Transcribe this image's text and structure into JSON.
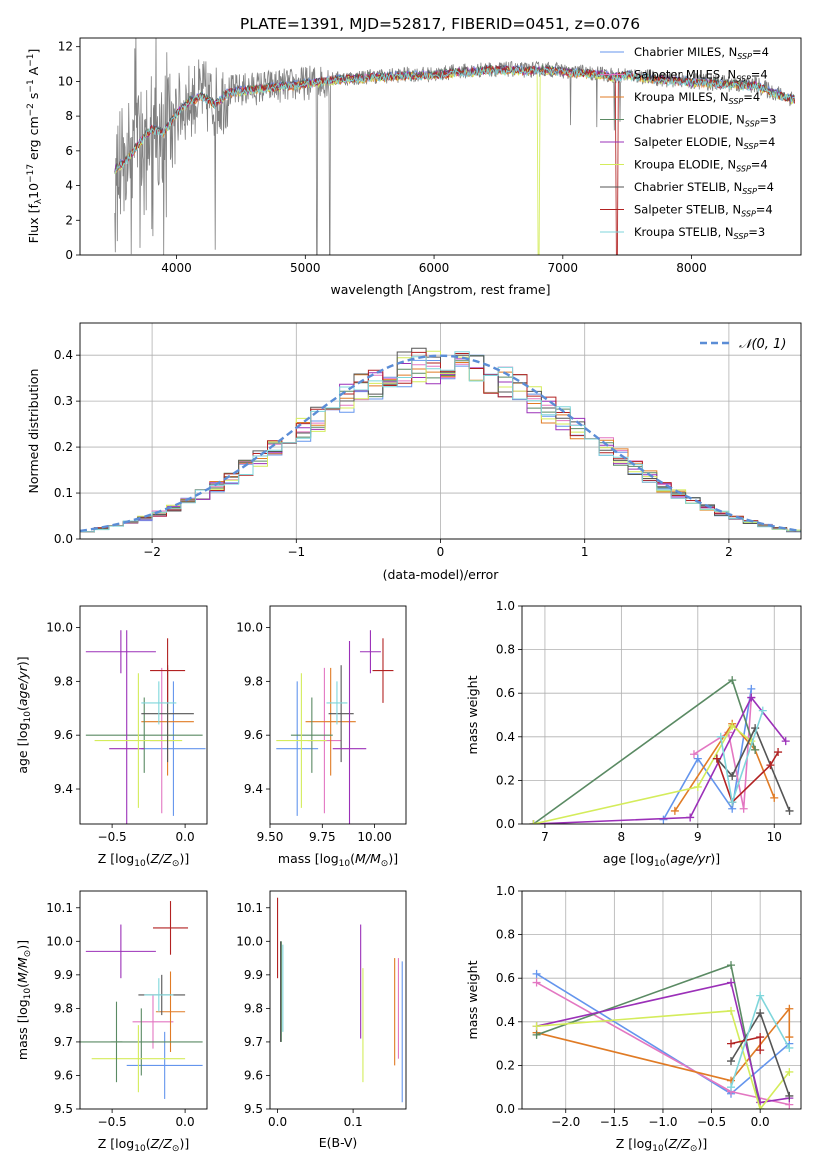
{
  "figure_title": "PLATE=1391, MJD=52817, FIBERID=0451, z=0.076",
  "series_styles": [
    {
      "name": "Chabrier MILES, N$_{SSP}$=4",
      "display": "Chabrier MILES, NSSP=4",
      "base": "Chabrier MILES, N",
      "sub": "SSP",
      "tail": "=4",
      "color": "#6495ED"
    },
    {
      "name": "Salpeter MILES, N$_{SSP}$=4",
      "display": "Salpeter MILES, NSSP=4",
      "base": "Salpeter MILES, N",
      "sub": "SSP",
      "tail": "=4",
      "color": "#E377C2"
    },
    {
      "name": "Kroupa MILES, N$_{SSP}$=4",
      "display": "Kroupa MILES, NSSP=4",
      "base": "Kroupa MILES, N",
      "sub": "SSP",
      "tail": "=4",
      "color": "#E07B25"
    },
    {
      "name": "Chabrier ELODIE, N$_{SSP}$=3",
      "display": "Chabrier ELODIE, NSSP=3",
      "base": "Chabrier ELODIE, N",
      "sub": "SSP",
      "tail": "=3",
      "color": "#5A8A63"
    },
    {
      "name": "Salpeter ELODIE, N$_{SSP}$=4",
      "display": "Salpeter ELODIE, NSSP=4",
      "base": "Salpeter ELODIE, N",
      "sub": "SSP",
      "tail": "=4",
      "color": "#9B30B8"
    },
    {
      "name": "Kroupa ELODIE, N$_{SSP}$=4",
      "display": "Kroupa ELODIE, NSSP=4",
      "base": "Kroupa ELODIE, N",
      "sub": "SSP",
      "tail": "=4",
      "color": "#D4EC5B"
    },
    {
      "name": "Chabrier STELIB, N$_{SSP}$=4",
      "display": "Chabrier STELIB, NSSP=4",
      "base": "Chabrier STELIB, N",
      "sub": "SSP",
      "tail": "=4",
      "color": "#555555"
    },
    {
      "name": "Salpeter STELIB, N$_{SSP}$=4",
      "display": "Salpeter STELIB, NSSP=4",
      "base": "Salpeter STELIB, N",
      "sub": "SSP",
      "tail": "=4",
      "color": "#B22222"
    },
    {
      "name": "Kroupa STELIB, N$_{SSP}$=3",
      "display": "Kroupa STELIB, NSSP=3",
      "base": "Kroupa STELIB, N",
      "sub": "SSP",
      "tail": "=3",
      "color": "#7FD6DB"
    }
  ],
  "chart_data": [
    {
      "id": "spectrum",
      "type": "line",
      "title": "PLATE=1391, MJD=52817, FIBERID=0451, z=0.076",
      "xlabel": "wavelength [Angstrom, rest frame]",
      "ylabel": "Flux [f_λ 10^-17 erg cm^-2 s^-1 A^-1]",
      "ylabel_parts": {
        "a": "Flux [f",
        "b": "λ",
        "c": "10",
        "d": "−17",
        "e": " erg cm",
        "f": "−2",
        "g": " s",
        "h": "−1",
        "i": " A",
        "j": "−1",
        "k": "]"
      },
      "xlim": [
        3250,
        8850
      ],
      "ylim": [
        0,
        12.5
      ],
      "xticks": [
        4000,
        5000,
        6000,
        7000,
        8000
      ],
      "yticks": [
        0,
        2,
        4,
        6,
        8,
        10,
        12
      ],
      "grid": false,
      "legend_position": "right",
      "data_color": "#808080",
      "continuum": {
        "x": [
          3520,
          3600,
          3700,
          3800,
          3900,
          4000,
          4100,
          4200,
          4300,
          4400,
          4500,
          4600,
          4700,
          4800,
          4900,
          5000,
          5100,
          5200,
          5300,
          5400,
          5500,
          5600,
          5700,
          5800,
          5900,
          6000,
          6100,
          6200,
          6300,
          6400,
          6500,
          6600,
          6700,
          6800,
          6900,
          7000,
          7100,
          7200,
          7300,
          7400,
          7500,
          7600,
          7700,
          7800,
          7900,
          8000,
          8100,
          8200,
          8300,
          8400,
          8500,
          8600,
          8700,
          8800
        ],
        "y": [
          5.0,
          5.4,
          6.4,
          7.3,
          7.1,
          8.2,
          8.9,
          9.2,
          8.7,
          9.4,
          9.5,
          9.6,
          9.7,
          9.75,
          9.8,
          9.9,
          10.0,
          10.1,
          10.2,
          10.2,
          10.3,
          10.3,
          10.35,
          10.4,
          10.4,
          10.4,
          10.5,
          10.6,
          10.6,
          10.7,
          10.7,
          10.7,
          10.65,
          10.7,
          10.7,
          10.6,
          10.55,
          10.5,
          10.45,
          10.3,
          10.4,
          10.3,
          10.2,
          10.1,
          10.1,
          10.0,
          10.0,
          9.9,
          9.9,
          9.8,
          9.8,
          9.5,
          9.2,
          9.0
        ]
      },
      "data_dips": [
        {
          "x": 3900,
          "y": 0.0
        },
        {
          "x": 4300,
          "y": 0.3
        },
        {
          "x": 5090,
          "y": 0.0
        },
        {
          "x": 5190,
          "y": 0.0
        }
      ],
      "model_dips": [
        {
          "x": 6810,
          "y": 0.0,
          "series": "Kroupa ELODIE, N$_{SSP}$=4"
        },
        {
          "x": 7420,
          "y": 0.0,
          "series": "Salpeter STELIB, N$_{SSP}$=4"
        }
      ]
    },
    {
      "id": "residuals",
      "type": "histogram",
      "xlabel": "(data-model)/error",
      "ylabel": "Normed distribution",
      "xlim": [
        -2.5,
        2.5
      ],
      "ylim": [
        0,
        0.47
      ],
      "xticks": [
        -2,
        -1,
        0,
        1,
        2
      ],
      "yticks": [
        0.0,
        0.1,
        0.2,
        0.3,
        0.4
      ],
      "grid": true,
      "bin_width": 0.1,
      "reference_curve": {
        "name": "𝒩(0,1)",
        "display": "𝒩(0, 1)",
        "mean": 0,
        "sigma": 1,
        "color": "#5B8DD6",
        "style": "dashed"
      },
      "legend_position": "top-right"
    },
    {
      "id": "age_vs_Z",
      "type": "errorbar",
      "xlabel": "Z [log10(Z/Z☉)]",
      "ylabel": "age [log10(age/yr)]",
      "xlim": [
        -0.72,
        0.15
      ],
      "ylim": [
        9.27,
        10.08
      ],
      "xticks": [
        -0.5,
        0.0
      ],
      "yticks": [
        9.4,
        9.6,
        9.8,
        10.0
      ],
      "grid": false,
      "points": [
        {
          "x": -0.08,
          "y": 9.55,
          "xerr": 0.22,
          "yerr": 0.25,
          "series": "Chabrier MILES, N$_{SSP}$=4"
        },
        {
          "x": -0.16,
          "y": 9.58,
          "xerr": 0.08,
          "yerr": 0.27,
          "series": "Salpeter MILES, N$_{SSP}$=4"
        },
        {
          "x": -0.12,
          "y": 9.65,
          "xerr": 0.18,
          "yerr": 0.2,
          "series": "Kroupa MILES, N$_{SSP}$=4"
        },
        {
          "x": -0.28,
          "y": 9.6,
          "xerr": 0.4,
          "yerr": 0.14,
          "series": "Chabrier ELODIE, N$_{SSP}$=3"
        },
        {
          "x": -0.4,
          "y": 9.55,
          "xerr": 0.12,
          "yerr": 0.44,
          "series": "Salpeter ELODIE, N$_{SSP}$=4"
        },
        {
          "x": -0.32,
          "y": 9.58,
          "xerr": 0.3,
          "yerr": 0.25,
          "series": "Kroupa ELODIE, N$_{SSP}$=4"
        },
        {
          "x": -0.12,
          "y": 9.68,
          "xerr": 0.18,
          "yerr": 0.18,
          "series": "Chabrier STELIB, N$_{SSP}$=4"
        },
        {
          "x": -0.12,
          "y": 9.84,
          "xerr": 0.12,
          "yerr": 0.12,
          "series": "Salpeter STELIB, N$_{SSP}$=4"
        },
        {
          "x": -0.18,
          "y": 9.72,
          "xerr": 0.12,
          "yerr": 0.08,
          "series": "Kroupa STELIB, N$_{SSP}$=3"
        },
        {
          "x": -0.44,
          "y": 9.91,
          "xerr": 0.24,
          "yerr": 0.08,
          "series": "Salpeter ELODIE, N$_{SSP}$=4"
        }
      ]
    },
    {
      "id": "age_vs_mass",
      "type": "errorbar",
      "xlabel": "mass [log10(M/M☉)]",
      "ylabel": "",
      "xlim": [
        9.5,
        10.15
      ],
      "ylim": [
        9.27,
        10.08
      ],
      "xticks": [
        9.5,
        9.75,
        10.0
      ],
      "yticks": [
        9.4,
        9.6,
        9.8,
        10.0
      ],
      "grid": false,
      "points": [
        {
          "x": 9.63,
          "y": 9.55,
          "xerr": 0.1,
          "yerr": 0.25,
          "series": "Chabrier MILES, N$_{SSP}$=4"
        },
        {
          "x": 9.76,
          "y": 9.58,
          "xerr": 0.08,
          "yerr": 0.27,
          "series": "Salpeter MILES, N$_{SSP}$=4"
        },
        {
          "x": 9.79,
          "y": 9.65,
          "xerr": 0.12,
          "yerr": 0.2,
          "series": "Kroupa MILES, N$_{SSP}$=4"
        },
        {
          "x": 9.7,
          "y": 9.6,
          "xerr": 0.1,
          "yerr": 0.14,
          "series": "Chabrier ELODIE, N$_{SSP}$=3"
        },
        {
          "x": 9.98,
          "y": 9.91,
          "xerr": 0.05,
          "yerr": 0.08,
          "series": "Salpeter ELODIE, N$_{SSP}$=4"
        },
        {
          "x": 9.65,
          "y": 9.58,
          "xerr": 0.12,
          "yerr": 0.25,
          "series": "Kroupa ELODIE, N$_{SSP}$=4"
        },
        {
          "x": 9.84,
          "y": 9.68,
          "xerr": 0.06,
          "yerr": 0.18,
          "series": "Chabrier STELIB, N$_{SSP}$=4"
        },
        {
          "x": 10.04,
          "y": 9.84,
          "xerr": 0.05,
          "yerr": 0.12,
          "series": "Salpeter STELIB, N$_{SSP}$=4"
        },
        {
          "x": 9.82,
          "y": 9.72,
          "xerr": 0.05,
          "yerr": 0.08,
          "series": "Kroupa STELIB, N$_{SSP}$=3"
        },
        {
          "x": 9.88,
          "y": 9.55,
          "xerr": 0.08,
          "yerr": 0.4,
          "series": "Salpeter ELODIE, N$_{SSP}$=4"
        }
      ]
    },
    {
      "id": "weight_vs_age",
      "type": "line",
      "xlabel": "age [log10(age/yr)]",
      "ylabel": "mass weight",
      "xlim": [
        6.7,
        10.35
      ],
      "ylim": [
        0,
        1.0
      ],
      "xticks": [
        7,
        8,
        9,
        10
      ],
      "yticks": [
        0.0,
        0.2,
        0.4,
        0.6,
        0.8,
        1.0
      ],
      "grid": true,
      "series": [
        {
          "name": "Chabrier MILES, N$_{SSP}$=4",
          "x": [
            8.55,
            9.0,
            9.45,
            9.7
          ],
          "y": [
            0.02,
            0.3,
            0.07,
            0.62
          ]
        },
        {
          "name": "Salpeter MILES, N$_{SSP}$=4",
          "x": [
            8.95,
            9.4,
            9.6,
            9.7
          ],
          "y": [
            0.32,
            0.42,
            0.07,
            0.58
          ]
        },
        {
          "name": "Kroupa MILES, N$_{SSP}$=4",
          "x": [
            8.7,
            9.45,
            9.75,
            10.0
          ],
          "y": [
            0.06,
            0.46,
            0.34,
            0.12
          ]
        },
        {
          "name": "Chabrier ELODIE, N$_{SSP}$=3",
          "x": [
            6.85,
            9.45,
            9.75
          ],
          "y": [
            0.0,
            0.66,
            0.34
          ]
        },
        {
          "name": "Salpeter ELODIE, N$_{SSP}$=4",
          "x": [
            6.85,
            8.9,
            9.7,
            10.15
          ],
          "y": [
            0.0,
            0.03,
            0.58,
            0.38
          ]
        },
        {
          "name": "Kroupa ELODIE, N$_{SSP}$=4",
          "x": [
            6.85,
            9.0,
            9.45,
            9.7
          ],
          "y": [
            0.0,
            0.17,
            0.45,
            0.38
          ]
        },
        {
          "name": "Chabrier STELIB, N$_{SSP}$=4",
          "x": [
            9.25,
            9.45,
            9.75,
            10.2
          ],
          "y": [
            0.3,
            0.22,
            0.44,
            0.06
          ]
        },
        {
          "name": "Salpeter STELIB, N$_{SSP}$=4",
          "x": [
            9.25,
            9.45,
            9.95,
            10.05
          ],
          "y": [
            0.3,
            0.1,
            0.27,
            0.33
          ]
        },
        {
          "name": "Kroupa STELIB, N$_{SSP}$=3",
          "x": [
            9.3,
            9.45,
            9.85
          ],
          "y": [
            0.4,
            0.1,
            0.52
          ]
        }
      ]
    },
    {
      "id": "mass_vs_Z",
      "type": "errorbar",
      "xlabel": "Z [log10(Z/Z☉)]",
      "ylabel": "mass [log10(M/M☉)]",
      "xlim": [
        -0.72,
        0.15
      ],
      "ylim": [
        9.5,
        10.15
      ],
      "xticks": [
        -0.5,
        0.0
      ],
      "yticks": [
        9.5,
        9.6,
        9.7,
        9.8,
        9.9,
        10.0,
        10.1
      ],
      "grid": false,
      "points": [
        {
          "x": -0.14,
          "y": 9.63,
          "xerr": 0.26,
          "yerr": 0.1,
          "series": "Chabrier MILES, N$_{SSP}$=4"
        },
        {
          "x": -0.22,
          "y": 9.76,
          "xerr": 0.14,
          "yerr": 0.08,
          "series": "Salpeter MILES, N$_{SSP}$=4"
        },
        {
          "x": -0.1,
          "y": 9.79,
          "xerr": 0.1,
          "yerr": 0.12,
          "series": "Kroupa MILES, N$_{SSP}$=4"
        },
        {
          "x": -0.3,
          "y": 9.7,
          "xerr": 0.42,
          "yerr": 0.1,
          "series": "Chabrier ELODIE, N$_{SSP}$=3"
        },
        {
          "x": -0.44,
          "y": 9.97,
          "xerr": 0.24,
          "yerr": 0.08,
          "series": "Salpeter ELODIE, N$_{SSP}$=4"
        },
        {
          "x": -0.32,
          "y": 9.65,
          "xerr": 0.32,
          "yerr": 0.1,
          "series": "Kroupa ELODIE, N$_{SSP}$=4"
        },
        {
          "x": -0.16,
          "y": 9.84,
          "xerr": 0.16,
          "yerr": 0.06,
          "series": "Chabrier STELIB, N$_{SSP}$=4"
        },
        {
          "x": -0.1,
          "y": 10.04,
          "xerr": 0.12,
          "yerr": 0.08,
          "series": "Salpeter STELIB, N$_{SSP}$=4"
        },
        {
          "x": -0.18,
          "y": 9.84,
          "xerr": 0.1,
          "yerr": 0.05,
          "series": "Kroupa STELIB, N$_{SSP}$=3"
        },
        {
          "x": -0.47,
          "y": 9.7,
          "xerr": 0.04,
          "yerr": 0.12,
          "series": "Chabrier ELODIE, N$_{SSP}$=3"
        }
      ]
    },
    {
      "id": "mass_vs_ebv",
      "type": "errorbar",
      "xlabel": "E(B-V)",
      "ylabel": "",
      "xlim": [
        -0.01,
        0.17
      ],
      "ylim": [
        9.5,
        10.15
      ],
      "xticks": [
        0.0,
        0.1
      ],
      "yticks": [
        9.5,
        9.6,
        9.7,
        9.8,
        9.9,
        10.0,
        10.1
      ],
      "grid": false,
      "points": [
        {
          "x": 0.165,
          "y": 9.73,
          "yerr": 0.21,
          "series": "Chabrier MILES, N$_{SSP}$=4"
        },
        {
          "x": 0.16,
          "y": 9.8,
          "yerr": 0.15,
          "series": "Salpeter MILES, N$_{SSP}$=4"
        },
        {
          "x": 0.155,
          "y": 9.79,
          "yerr": 0.16,
          "series": "Kroupa MILES, N$_{SSP}$=4"
        },
        {
          "x": 0.005,
          "y": 9.85,
          "yerr": 0.15,
          "series": "Chabrier ELODIE, N$_{SSP}$=3"
        },
        {
          "x": 0.11,
          "y": 9.88,
          "yerr": 0.17,
          "series": "Salpeter ELODIE, N$_{SSP}$=4"
        },
        {
          "x": 0.113,
          "y": 9.75,
          "yerr": 0.17,
          "series": "Kroupa ELODIE, N$_{SSP}$=4"
        },
        {
          "x": 0.004,
          "y": 9.85,
          "yerr": 0.15,
          "series": "Chabrier STELIB, N$_{SSP}$=4"
        },
        {
          "x": 0.0,
          "y": 10.01,
          "yerr": 0.12,
          "series": "Salpeter STELIB, N$_{SSP}$=4"
        },
        {
          "x": 0.007,
          "y": 9.86,
          "yerr": 0.13,
          "series": "Kroupa STELIB, N$_{SSP}$=3"
        }
      ]
    },
    {
      "id": "weight_vs_Z",
      "type": "line",
      "xlabel": "Z [log10(Z/Z☉)]",
      "ylabel": "mass weight",
      "xlim": [
        -2.45,
        0.42
      ],
      "ylim": [
        0,
        1.0
      ],
      "xticks": [
        -2.0,
        -1.5,
        -1.0,
        -0.5,
        0.0
      ],
      "yticks": [
        0.0,
        0.2,
        0.4,
        0.6,
        0.8,
        1.0
      ],
      "grid": true,
      "series": [
        {
          "name": "Chabrier MILES, N$_{SSP}$=4",
          "x": [
            -2.3,
            -0.3,
            0.3
          ],
          "y": [
            0.62,
            0.07,
            0.3
          ]
        },
        {
          "name": "Salpeter MILES, N$_{SSP}$=4",
          "x": [
            -2.3,
            -0.3,
            0.3
          ],
          "y": [
            0.58,
            0.08,
            0.02
          ]
        },
        {
          "name": "Kroupa MILES, N$_{SSP}$=4",
          "x": [
            -2.3,
            -0.3,
            0.3,
            0.3
          ],
          "y": [
            0.35,
            0.13,
            0.46,
            0.33
          ]
        },
        {
          "name": "Chabrier ELODIE, N$_{SSP}$=3",
          "x": [
            -2.3,
            -0.3,
            0.0
          ],
          "y": [
            0.34,
            0.66,
            0.0
          ]
        },
        {
          "name": "Salpeter ELODIE, N$_{SSP}$=4",
          "x": [
            -2.3,
            -0.3,
            0.0,
            0.3
          ],
          "y": [
            0.38,
            0.58,
            0.03,
            0.05
          ]
        },
        {
          "name": "Kroupa ELODIE, N$_{SSP}$=4",
          "x": [
            -2.3,
            -0.3,
            0.0,
            0.3
          ],
          "y": [
            0.38,
            0.45,
            0.0,
            0.17
          ]
        },
        {
          "name": "Chabrier STELIB, N$_{SSP}$=4",
          "x": [
            -0.3,
            0.0,
            0.3
          ],
          "y": [
            0.22,
            0.44,
            0.06
          ]
        },
        {
          "name": "Salpeter STELIB, N$_{SSP}$=4",
          "x": [
            -0.3,
            0.0,
            0.0
          ],
          "y": [
            0.3,
            0.33,
            0.27
          ]
        },
        {
          "name": "Kroupa STELIB, N$_{SSP}$=3",
          "x": [
            -0.3,
            0.0,
            0.3
          ],
          "y": [
            0.1,
            0.52,
            0.28
          ]
        }
      ]
    }
  ]
}
